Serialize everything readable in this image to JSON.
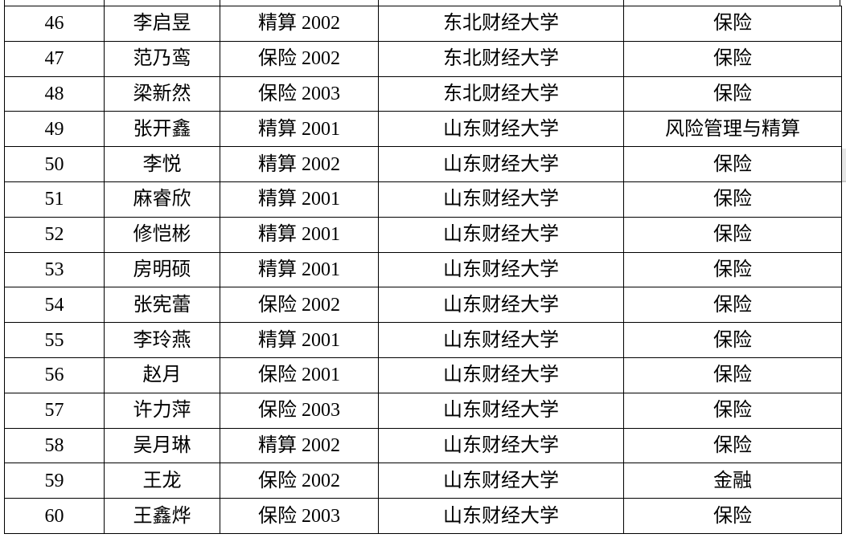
{
  "table": {
    "rows": [
      [
        "46",
        "李启昱",
        "精算 2002",
        "东北财经大学",
        "保险"
      ],
      [
        "47",
        "范乃鸾",
        "保险 2002",
        "东北财经大学",
        "保险"
      ],
      [
        "48",
        "梁新然",
        "保险 2003",
        "东北财经大学",
        "保险"
      ],
      [
        "49",
        "张开鑫",
        "精算 2001",
        "山东财经大学",
        "风险管理与精算"
      ],
      [
        "50",
        "李悦",
        "精算 2002",
        "山东财经大学",
        "保险"
      ],
      [
        "51",
        "麻睿欣",
        "精算 2001",
        "山东财经大学",
        "保险"
      ],
      [
        "52",
        "修恺彬",
        "精算 2001",
        "山东财经大学",
        "保险"
      ],
      [
        "53",
        "房明硕",
        "精算 2001",
        "山东财经大学",
        "保险"
      ],
      [
        "54",
        "张宪蕾",
        "保险 2002",
        "山东财经大学",
        "保险"
      ],
      [
        "55",
        "李玲燕",
        "精算 2001",
        "山东财经大学",
        "保险"
      ],
      [
        "56",
        "赵月",
        "保险 2001",
        "山东财经大学",
        "保险"
      ],
      [
        "57",
        "许力萍",
        "保险 2003",
        "山东财经大学",
        "保险"
      ],
      [
        "58",
        "吴月琳",
        "精算 2002",
        "山东财经大学",
        "保险"
      ],
      [
        "59",
        "王龙",
        "保险 2002",
        "山东财经大学",
        "金融"
      ],
      [
        "60",
        "王鑫烨",
        "保险 2003",
        "山东财经大学",
        "保险"
      ]
    ]
  }
}
